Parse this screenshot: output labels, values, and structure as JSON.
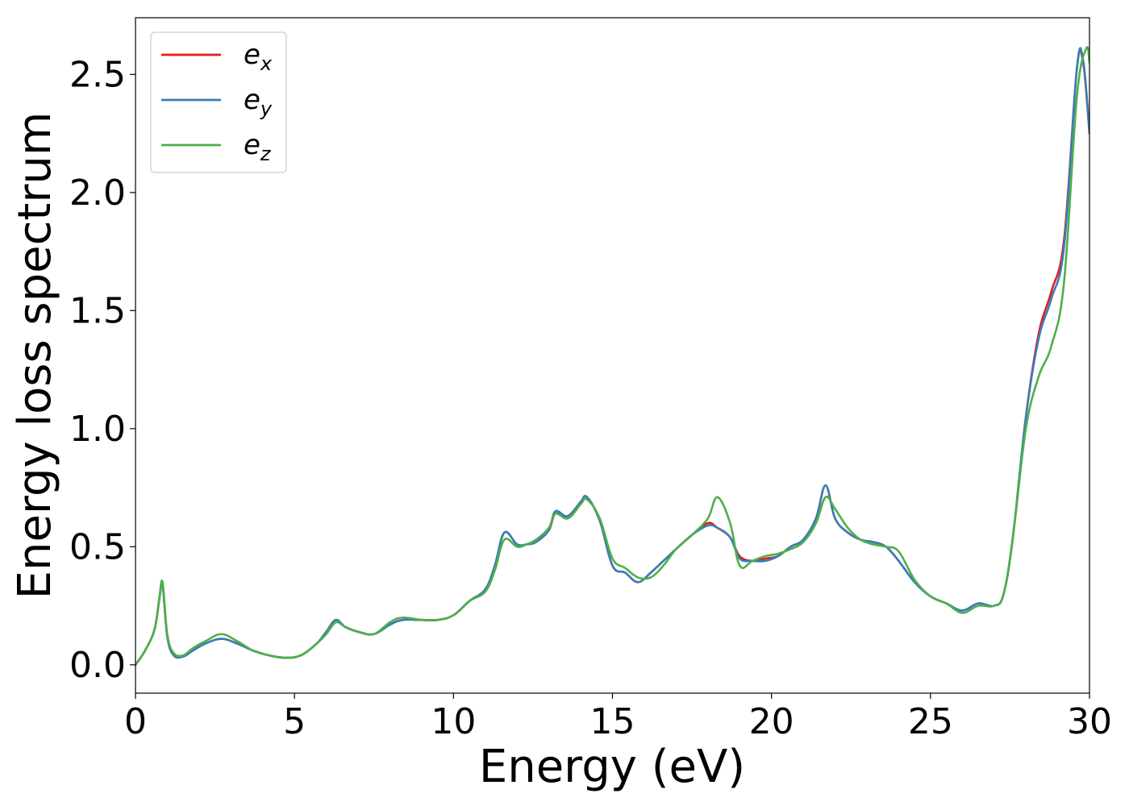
{
  "chart_data": {
    "type": "line",
    "title": "",
    "xlabel": "Energy (eV)",
    "ylabel": "Energy loss spectrum",
    "xlim": [
      0,
      30
    ],
    "ylim": [
      -0.12,
      2.74
    ],
    "xticks": [
      0,
      5,
      10,
      15,
      20,
      25,
      30
    ],
    "xtick_labels": [
      "0",
      "5",
      "10",
      "15",
      "20",
      "25",
      "30"
    ],
    "yticks": [
      0.0,
      0.5,
      1.0,
      1.5,
      2.0,
      2.5
    ],
    "ytick_labels": [
      "0.0",
      "0.5",
      "1.0",
      "1.5",
      "2.0",
      "2.5"
    ],
    "grid": false,
    "legend_position": "top-left",
    "series": [
      {
        "name": "e_x",
        "legend_base": "e",
        "legend_sub": "x",
        "color": "#e41a1c",
        "x": [
          0,
          0.3,
          0.6,
          0.75,
          0.85,
          1.0,
          1.2,
          1.5,
          1.8,
          2.2,
          2.7,
          3.2,
          3.7,
          4.2,
          4.7,
          5.2,
          5.7,
          6.0,
          6.3,
          6.6,
          7.0,
          7.5,
          8.0,
          8.4,
          9.0,
          9.5,
          10.0,
          10.5,
          11.0,
          11.3,
          11.6,
          12.0,
          12.3,
          12.6,
          13.0,
          13.2,
          13.6,
          14.0,
          14.2,
          14.6,
          15.0,
          15.4,
          15.8,
          16.2,
          16.6,
          17.0,
          17.5,
          18.0,
          18.3,
          18.7,
          19.0,
          19.4,
          19.8,
          20.2,
          20.6,
          21.0,
          21.4,
          21.7,
          22.0,
          22.4,
          22.8,
          23.2,
          23.6,
          24.0,
          24.5,
          25.0,
          25.5,
          26.0,
          26.5,
          27.0,
          27.3,
          27.6,
          28.0,
          28.4,
          28.8,
          29.2,
          29.6,
          29.8,
          30.0
        ],
        "y": [
          0.0,
          0.06,
          0.15,
          0.28,
          0.34,
          0.12,
          0.04,
          0.035,
          0.06,
          0.09,
          0.11,
          0.09,
          0.06,
          0.04,
          0.03,
          0.04,
          0.09,
          0.14,
          0.19,
          0.16,
          0.14,
          0.13,
          0.17,
          0.19,
          0.19,
          0.19,
          0.21,
          0.27,
          0.32,
          0.42,
          0.56,
          0.51,
          0.51,
          0.53,
          0.57,
          0.64,
          0.63,
          0.69,
          0.71,
          0.61,
          0.42,
          0.39,
          0.35,
          0.39,
          0.44,
          0.49,
          0.55,
          0.6,
          0.58,
          0.54,
          0.46,
          0.44,
          0.45,
          0.46,
          0.5,
          0.53,
          0.62,
          0.76,
          0.62,
          0.56,
          0.53,
          0.52,
          0.5,
          0.44,
          0.35,
          0.29,
          0.26,
          0.23,
          0.26,
          0.25,
          0.3,
          0.55,
          1.05,
          1.4,
          1.58,
          1.8,
          2.52,
          2.55,
          2.25
        ]
      },
      {
        "name": "e_y",
        "legend_base": "e",
        "legend_sub": "y",
        "color": "#377eb8",
        "x": [
          0,
          0.3,
          0.6,
          0.75,
          0.85,
          1.0,
          1.2,
          1.5,
          1.8,
          2.2,
          2.7,
          3.2,
          3.7,
          4.2,
          4.7,
          5.2,
          5.7,
          6.0,
          6.3,
          6.6,
          7.0,
          7.5,
          8.0,
          8.4,
          9.0,
          9.5,
          10.0,
          10.5,
          11.0,
          11.3,
          11.6,
          12.0,
          12.3,
          12.6,
          13.0,
          13.2,
          13.6,
          14.0,
          14.2,
          14.6,
          15.0,
          15.4,
          15.8,
          16.2,
          16.6,
          17.0,
          17.5,
          18.0,
          18.3,
          18.7,
          19.0,
          19.4,
          19.8,
          20.2,
          20.6,
          21.0,
          21.4,
          21.7,
          22.0,
          22.4,
          22.8,
          23.2,
          23.6,
          24.0,
          24.5,
          25.0,
          25.5,
          26.0,
          26.5,
          27.0,
          27.3,
          27.6,
          28.0,
          28.4,
          28.8,
          29.2,
          29.6,
          29.8,
          30.0
        ],
        "y": [
          0.0,
          0.06,
          0.15,
          0.28,
          0.34,
          0.12,
          0.04,
          0.035,
          0.06,
          0.09,
          0.11,
          0.09,
          0.06,
          0.04,
          0.03,
          0.04,
          0.09,
          0.14,
          0.19,
          0.16,
          0.14,
          0.13,
          0.17,
          0.19,
          0.19,
          0.19,
          0.21,
          0.27,
          0.32,
          0.42,
          0.56,
          0.51,
          0.51,
          0.52,
          0.57,
          0.65,
          0.63,
          0.69,
          0.71,
          0.61,
          0.42,
          0.39,
          0.35,
          0.39,
          0.44,
          0.49,
          0.55,
          0.59,
          0.58,
          0.54,
          0.45,
          0.44,
          0.44,
          0.46,
          0.5,
          0.53,
          0.62,
          0.76,
          0.62,
          0.56,
          0.53,
          0.52,
          0.5,
          0.44,
          0.35,
          0.29,
          0.26,
          0.23,
          0.26,
          0.25,
          0.3,
          0.55,
          1.05,
          1.38,
          1.55,
          1.77,
          2.52,
          2.56,
          2.25
        ]
      },
      {
        "name": "e_z",
        "legend_base": "e",
        "legend_sub": "z",
        "color": "#4daf4a",
        "x": [
          0,
          0.3,
          0.6,
          0.75,
          0.85,
          1.0,
          1.2,
          1.5,
          1.8,
          2.2,
          2.7,
          3.2,
          3.7,
          4.2,
          4.7,
          5.2,
          5.7,
          6.0,
          6.3,
          6.6,
          7.0,
          7.5,
          8.0,
          8.4,
          9.0,
          9.5,
          10.0,
          10.5,
          11.0,
          11.3,
          11.6,
          12.0,
          12.3,
          12.6,
          13.0,
          13.2,
          13.6,
          14.0,
          14.2,
          14.6,
          15.0,
          15.4,
          15.8,
          16.2,
          16.6,
          17.0,
          17.5,
          18.0,
          18.3,
          18.7,
          19.0,
          19.4,
          19.8,
          20.2,
          20.6,
          21.0,
          21.4,
          21.7,
          22.0,
          22.4,
          22.8,
          23.2,
          23.6,
          24.0,
          24.5,
          25.0,
          25.5,
          26.0,
          26.5,
          27.0,
          27.3,
          27.6,
          28.0,
          28.4,
          28.8,
          29.2,
          29.6,
          29.9,
          30.0
        ],
        "y": [
          0.0,
          0.06,
          0.15,
          0.28,
          0.35,
          0.13,
          0.05,
          0.04,
          0.07,
          0.1,
          0.13,
          0.1,
          0.06,
          0.04,
          0.03,
          0.04,
          0.09,
          0.13,
          0.18,
          0.16,
          0.14,
          0.13,
          0.18,
          0.2,
          0.19,
          0.19,
          0.21,
          0.27,
          0.31,
          0.4,
          0.53,
          0.5,
          0.51,
          0.53,
          0.58,
          0.64,
          0.62,
          0.68,
          0.7,
          0.62,
          0.45,
          0.41,
          0.37,
          0.37,
          0.42,
          0.49,
          0.55,
          0.62,
          0.71,
          0.6,
          0.42,
          0.44,
          0.46,
          0.47,
          0.49,
          0.52,
          0.6,
          0.71,
          0.66,
          0.58,
          0.53,
          0.51,
          0.5,
          0.48,
          0.36,
          0.29,
          0.26,
          0.22,
          0.25,
          0.25,
          0.3,
          0.55,
          1.0,
          1.22,
          1.35,
          1.62,
          2.4,
          2.61,
          2.55
        ]
      }
    ]
  }
}
